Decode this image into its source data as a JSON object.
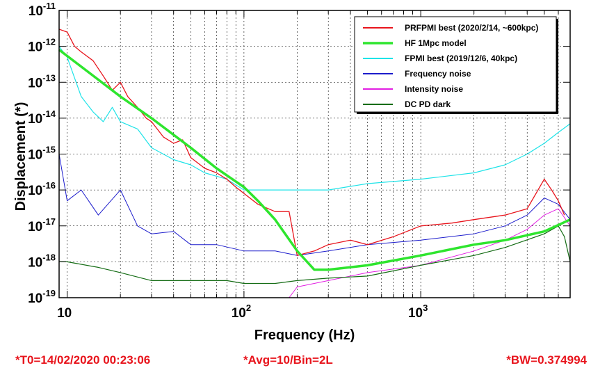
{
  "chart_data": {
    "type": "line",
    "xscale": "log",
    "yscale": "log",
    "xlim": [
      9,
      7000
    ],
    "ylim": [
      1e-19,
      1e-11
    ],
    "xlabel": "Frequency (Hz)",
    "ylabel": "Displacement (*)",
    "x_ticks": [
      {
        "value": 10,
        "base": "10",
        "exp": ""
      },
      {
        "value": 100,
        "base": "10",
        "exp": "2"
      },
      {
        "value": 1000,
        "base": "10",
        "exp": "3"
      }
    ],
    "y_ticks": [
      {
        "value": 1e-19,
        "base": "10",
        "exp": "-19"
      },
      {
        "value": 1e-18,
        "base": "10",
        "exp": "-18"
      },
      {
        "value": 1e-17,
        "base": "10",
        "exp": "-17"
      },
      {
        "value": 1e-16,
        "base": "10",
        "exp": "-16"
      },
      {
        "value": 1e-15,
        "base": "10",
        "exp": "-15"
      },
      {
        "value": 1e-14,
        "base": "10",
        "exp": "-14"
      },
      {
        "value": 1e-13,
        "base": "10",
        "exp": "-13"
      },
      {
        "value": 1e-12,
        "base": "10",
        "exp": "-12"
      },
      {
        "value": 1e-11,
        "base": "10",
        "exp": "-11"
      }
    ],
    "grid": true,
    "legend_position": "top-right",
    "series": [
      {
        "name": "PRFPMI best (2020/2/14, ~600kpc)",
        "color": "#e8141c",
        "width": 1.3,
        "points": [
          [
            9,
            3e-12
          ],
          [
            10,
            2.5e-12
          ],
          [
            11,
            1e-12
          ],
          [
            12,
            7e-13
          ],
          [
            14,
            4e-13
          ],
          [
            16,
            1.5e-13
          ],
          [
            18,
            6e-14
          ],
          [
            20,
            1e-13
          ],
          [
            22,
            4e-14
          ],
          [
            25,
            2e-14
          ],
          [
            28,
            1e-14
          ],
          [
            30,
            8e-15
          ],
          [
            35,
            3e-15
          ],
          [
            40,
            2e-15
          ],
          [
            45,
            2.5e-15
          ],
          [
            50,
            8e-16
          ],
          [
            60,
            4e-16
          ],
          [
            70,
            3e-16
          ],
          [
            80,
            2e-16
          ],
          [
            90,
            1.2e-16
          ],
          [
            100,
            8e-17
          ],
          [
            120,
            4e-17
          ],
          [
            150,
            2.5e-17
          ],
          [
            180,
            2.5e-17
          ],
          [
            200,
            1.5e-18
          ],
          [
            250,
            2e-18
          ],
          [
            300,
            3e-18
          ],
          [
            400,
            4e-18
          ],
          [
            500,
            3e-18
          ],
          [
            700,
            5e-18
          ],
          [
            1000,
            1e-17
          ],
          [
            1500,
            1.2e-17
          ],
          [
            2000,
            1.5e-17
          ],
          [
            3000,
            2e-17
          ],
          [
            4000,
            3e-17
          ],
          [
            5000,
            2e-16
          ],
          [
            5500,
            1e-16
          ],
          [
            6000,
            5e-17
          ],
          [
            6500,
            2e-17
          ]
        ]
      },
      {
        "name": "HF 1Mpc model",
        "color": "#2ee52e",
        "width": 3.5,
        "points": [
          [
            9,
            8e-13
          ],
          [
            20,
            4e-14
          ],
          [
            30,
            1e-14
          ],
          [
            50,
            1.5e-15
          ],
          [
            70,
            4e-16
          ],
          [
            100,
            1.2e-16
          ],
          [
            120,
            5e-17
          ],
          [
            150,
            1.5e-17
          ],
          [
            200,
            2e-18
          ],
          [
            250,
            6e-19
          ],
          [
            300,
            6e-19
          ],
          [
            500,
            8e-19
          ],
          [
            1000,
            1.5e-18
          ],
          [
            2000,
            3e-18
          ],
          [
            3000,
            4e-18
          ],
          [
            5000,
            7e-18
          ],
          [
            7000,
            1.5e-17
          ]
        ]
      },
      {
        "name": "FPMI best (2019/12/6, 40kpc)",
        "color": "#1ee3e8",
        "width": 1.2,
        "points": [
          [
            9,
            1e-12
          ],
          [
            10,
            5e-13
          ],
          [
            12,
            4e-14
          ],
          [
            14,
            1.5e-14
          ],
          [
            16,
            8e-15
          ],
          [
            18,
            2e-14
          ],
          [
            20,
            8e-15
          ],
          [
            25,
            5e-15
          ],
          [
            30,
            1.5e-15
          ],
          [
            40,
            7e-16
          ],
          [
            50,
            5e-16
          ],
          [
            60,
            3e-16
          ],
          [
            80,
            2e-16
          ],
          [
            100,
            1e-16
          ],
          [
            150,
            1e-16
          ],
          [
            200,
            1e-16
          ],
          [
            300,
            1e-16
          ],
          [
            500,
            1.5e-16
          ],
          [
            1000,
            2e-16
          ],
          [
            2000,
            3e-16
          ],
          [
            3000,
            5e-16
          ],
          [
            4000,
            1e-15
          ],
          [
            5000,
            2e-15
          ],
          [
            6000,
            4e-15
          ],
          [
            7000,
            7e-15
          ]
        ]
      },
      {
        "name": "Frequency noise",
        "color": "#1c1ccc",
        "width": 1.0,
        "points": [
          [
            9,
            1e-15
          ],
          [
            10,
            5e-17
          ],
          [
            12,
            1e-16
          ],
          [
            15,
            2e-17
          ],
          [
            20,
            1e-16
          ],
          [
            25,
            1e-17
          ],
          [
            30,
            6e-18
          ],
          [
            40,
            7e-18
          ],
          [
            50,
            3e-18
          ],
          [
            70,
            3e-18
          ],
          [
            100,
            2e-18
          ],
          [
            150,
            2e-18
          ],
          [
            200,
            1.5e-18
          ],
          [
            300,
            2e-18
          ],
          [
            500,
            3e-18
          ],
          [
            1000,
            4e-18
          ],
          [
            2000,
            6e-18
          ],
          [
            3000,
            1e-17
          ],
          [
            4000,
            2e-17
          ],
          [
            5000,
            6e-17
          ],
          [
            6000,
            4e-17
          ],
          [
            7000,
            1.5e-17
          ]
        ]
      },
      {
        "name": "Intensity noise",
        "color": "#e21ee2",
        "width": 1.0,
        "points": [
          [
            180,
            1e-19
          ],
          [
            200,
            2e-19
          ],
          [
            300,
            3e-19
          ],
          [
            500,
            5e-19
          ],
          [
            1000,
            8e-19
          ],
          [
            2000,
            2e-18
          ],
          [
            3000,
            4e-18
          ],
          [
            4000,
            8e-18
          ],
          [
            5000,
            2e-17
          ],
          [
            6000,
            3e-17
          ],
          [
            7000,
            1e-17
          ]
        ]
      },
      {
        "name": "DC PD dark",
        "color": "#146c14",
        "width": 1.2,
        "points": [
          [
            9,
            1e-18
          ],
          [
            10,
            1e-18
          ],
          [
            15,
            7e-19
          ],
          [
            20,
            5e-19
          ],
          [
            30,
            3e-19
          ],
          [
            50,
            3e-19
          ],
          [
            80,
            3e-19
          ],
          [
            100,
            2.5e-19
          ],
          [
            150,
            2.5e-19
          ],
          [
            200,
            3e-19
          ],
          [
            300,
            3.5e-19
          ],
          [
            500,
            4e-19
          ],
          [
            1000,
            8e-19
          ],
          [
            2000,
            1.5e-18
          ],
          [
            3000,
            2.5e-18
          ],
          [
            5000,
            6e-18
          ],
          [
            6000,
            1e-17
          ],
          [
            6500,
            5e-18
          ],
          [
            7000,
            1e-18
          ]
        ]
      }
    ]
  },
  "footer": {
    "left": "*T0=14/02/2020 00:23:06",
    "middle": "*Avg=10/Bin=2L",
    "right": "*BW=0.374994"
  }
}
